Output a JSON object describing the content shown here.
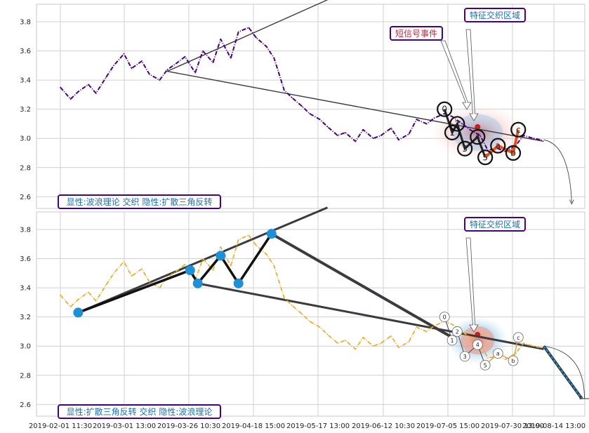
{
  "chart_data": [
    {
      "type": "line",
      "panel": "top",
      "ylim": [
        2.52,
        3.92
      ],
      "y_ticks": [
        "2.6",
        "2.8",
        "3.0",
        "3.2",
        "3.4",
        "3.6",
        "3.8"
      ],
      "line_color": "#4b0082",
      "series": [
        {
          "x": [
            "2019-02-01",
            "2019-02-05",
            "2019-02-08",
            "2019-02-12",
            "2019-02-15",
            "2019-02-19",
            "2019-02-22",
            "2019-02-26",
            "2019-03-01",
            "2019-03-05",
            "2019-03-08",
            "2019-03-12",
            "2019-03-15",
            "2019-03-19",
            "2019-03-22",
            "2019-03-26",
            "2019-03-29",
            "2019-04-02",
            "2019-04-05",
            "2019-04-09",
            "2019-04-12",
            "2019-04-16",
            "2019-04-19",
            "2019-04-23",
            "2019-04-26",
            "2019-04-30",
            "2019-05-03",
            "2019-05-07",
            "2019-05-10",
            "2019-05-14",
            "2019-05-17",
            "2019-05-21",
            "2019-05-24",
            "2019-05-28",
            "2019-05-31",
            "2019-06-04",
            "2019-06-07",
            "2019-06-11",
            "2019-06-14",
            "2019-06-18",
            "2019-06-21",
            "2019-06-25",
            "2019-06-28",
            "2019-07-02",
            "2019-07-05",
            "2019-07-09",
            "2019-07-12",
            "2019-07-16",
            "2019-07-19",
            "2019-07-23",
            "2019-07-26",
            "2019-07-30",
            "2019-08-02",
            "2019-08-06",
            "2019-08-09"
          ],
          "y": [
            3.35,
            3.27,
            3.32,
            3.37,
            3.31,
            3.42,
            3.5,
            3.58,
            3.48,
            3.53,
            3.44,
            3.4,
            3.47,
            3.52,
            3.56,
            3.45,
            3.6,
            3.52,
            3.68,
            3.55,
            3.73,
            3.76,
            3.69,
            3.63,
            3.55,
            3.33,
            3.28,
            3.22,
            3.17,
            3.13,
            3.08,
            3.02,
            3.04,
            2.98,
            3.06,
            3.0,
            3.02,
            3.07,
            2.99,
            3.03,
            3.13,
            3.1,
            3.14,
            3.17,
            3.15,
            3.1,
            3.06,
            3.02,
            2.92,
            2.93,
            2.91,
            2.95,
            3.02,
            3.0,
            2.99
          ]
        }
      ],
      "wave_labels": [
        "0",
        "1",
        "2",
        "3",
        "4",
        "5",
        "a",
        "b",
        "c"
      ],
      "wave_points": [
        {
          "label": "0",
          "x": "2019-07-02",
          "y": 3.2
        },
        {
          "label": "1",
          "x": "2019-07-05",
          "y": 3.04
        },
        {
          "label": "2",
          "x": "2019-07-07",
          "y": 3.1
        },
        {
          "label": "3",
          "x": "2019-07-10",
          "y": 2.93
        },
        {
          "label": "4",
          "x": "2019-07-15",
          "y": 3.01
        },
        {
          "label": "5",
          "x": "2019-07-18",
          "y": 2.87
        },
        {
          "label": "a",
          "x": "2019-07-23",
          "y": 2.95
        },
        {
          "label": "b",
          "x": "2019-07-29",
          "y": 2.9
        },
        {
          "label": "c",
          "x": "2019-07-31",
          "y": 3.06
        }
      ],
      "annotations": [
        {
          "text": "显性:波浪理论 交织 隐性:扩散三角反转",
          "color": "#1a6fb0"
        },
        {
          "text": "短信号事件",
          "color": "#c0283c"
        },
        {
          "text": "特征交织区域",
          "color": "#1a6fb0"
        }
      ]
    },
    {
      "type": "line",
      "panel": "bottom",
      "ylim": [
        2.52,
        3.92
      ],
      "y_ticks": [
        "2.6",
        "2.8",
        "3.0",
        "3.2",
        "3.4",
        "3.6",
        "3.8"
      ],
      "line_color": "#e8b030",
      "series": [
        {
          "x": [
            "2019-02-01",
            "2019-02-05",
            "2019-02-08",
            "2019-02-12",
            "2019-02-15",
            "2019-02-19",
            "2019-02-22",
            "2019-02-26",
            "2019-03-01",
            "2019-03-05",
            "2019-03-08",
            "2019-03-12",
            "2019-03-15",
            "2019-03-19",
            "2019-03-22",
            "2019-03-26",
            "2019-03-29",
            "2019-04-02",
            "2019-04-05",
            "2019-04-09",
            "2019-04-12",
            "2019-04-16",
            "2019-04-19",
            "2019-04-23",
            "2019-04-26",
            "2019-04-30",
            "2019-05-03",
            "2019-05-07",
            "2019-05-10",
            "2019-05-14",
            "2019-05-17",
            "2019-05-21",
            "2019-05-24",
            "2019-05-28",
            "2019-05-31",
            "2019-06-04",
            "2019-06-07",
            "2019-06-11",
            "2019-06-14",
            "2019-06-18",
            "2019-06-21",
            "2019-06-25",
            "2019-06-28",
            "2019-07-02",
            "2019-07-05",
            "2019-07-09",
            "2019-07-12",
            "2019-07-16",
            "2019-07-19",
            "2019-07-23",
            "2019-07-26",
            "2019-07-30",
            "2019-08-02",
            "2019-08-06",
            "2019-08-09"
          ],
          "y": [
            3.35,
            3.27,
            3.32,
            3.37,
            3.31,
            3.42,
            3.5,
            3.58,
            3.48,
            3.53,
            3.44,
            3.4,
            3.47,
            3.52,
            3.56,
            3.45,
            3.6,
            3.52,
            3.68,
            3.55,
            3.73,
            3.76,
            3.69,
            3.63,
            3.55,
            3.33,
            3.28,
            3.22,
            3.17,
            3.13,
            3.08,
            3.02,
            3.04,
            2.98,
            3.06,
            3.0,
            3.02,
            3.07,
            2.99,
            3.03,
            3.13,
            3.1,
            3.14,
            3.17,
            3.15,
            3.1,
            3.06,
            3.02,
            2.92,
            2.93,
            2.91,
            2.95,
            3.02,
            3.0,
            2.99
          ]
        }
      ],
      "pattern_points": [
        {
          "x": "2019-02-08",
          "y": 3.23
        },
        {
          "x": "2019-03-24",
          "y": 3.52
        },
        {
          "x": "2019-03-27",
          "y": 3.43
        },
        {
          "x": "2019-04-05",
          "y": 3.62
        },
        {
          "x": "2019-04-12",
          "y": 3.43
        },
        {
          "x": "2019-04-25",
          "y": 3.77
        }
      ],
      "wave_labels": [
        "0",
        "1",
        "2",
        "3",
        "4",
        "5",
        "a",
        "b",
        "c"
      ],
      "wave_points": [
        {
          "label": "0",
          "x": "2019-07-02",
          "y": 3.2
        },
        {
          "label": "1",
          "x": "2019-07-05",
          "y": 3.04
        },
        {
          "label": "2",
          "x": "2019-07-07",
          "y": 3.1
        },
        {
          "label": "3",
          "x": "2019-07-10",
          "y": 2.93
        },
        {
          "label": "4",
          "x": "2019-07-15",
          "y": 3.01
        },
        {
          "label": "5",
          "x": "2019-07-18",
          "y": 2.87
        },
        {
          "label": "a",
          "x": "2019-07-23",
          "y": 2.95
        },
        {
          "label": "b",
          "x": "2019-07-29",
          "y": 2.9
        },
        {
          "label": "c",
          "x": "2019-07-31",
          "y": 3.06
        }
      ],
      "annotations": [
        {
          "text": "显性:扩散三角反转 交织 隐性:波浪理论",
          "color": "#1a6fb0"
        },
        {
          "text": "特征交织区域",
          "color": "#1a6fb0"
        }
      ]
    }
  ],
  "x_axis": {
    "tick_labels": [
      "2019-02-01 11:30",
      "2019-03-01 13:00",
      "2019-03-26 10:30",
      "2019-04-18 15:00",
      "2019-05-17 13:00",
      "2019-06-12 10:30",
      "2019-07-05 15:00",
      "2019-07-30 13:00",
      "2019-08-14 13:00"
    ]
  },
  "colors": {
    "grid": "#d0d0d0",
    "frame": "#c8c8c8",
    "trend": "#3a3a40",
    "label_border": "#4b0082",
    "pattern_marker": "#1e90d8",
    "wave_orange": "#e8501a",
    "forecast": "#1e90d8"
  }
}
